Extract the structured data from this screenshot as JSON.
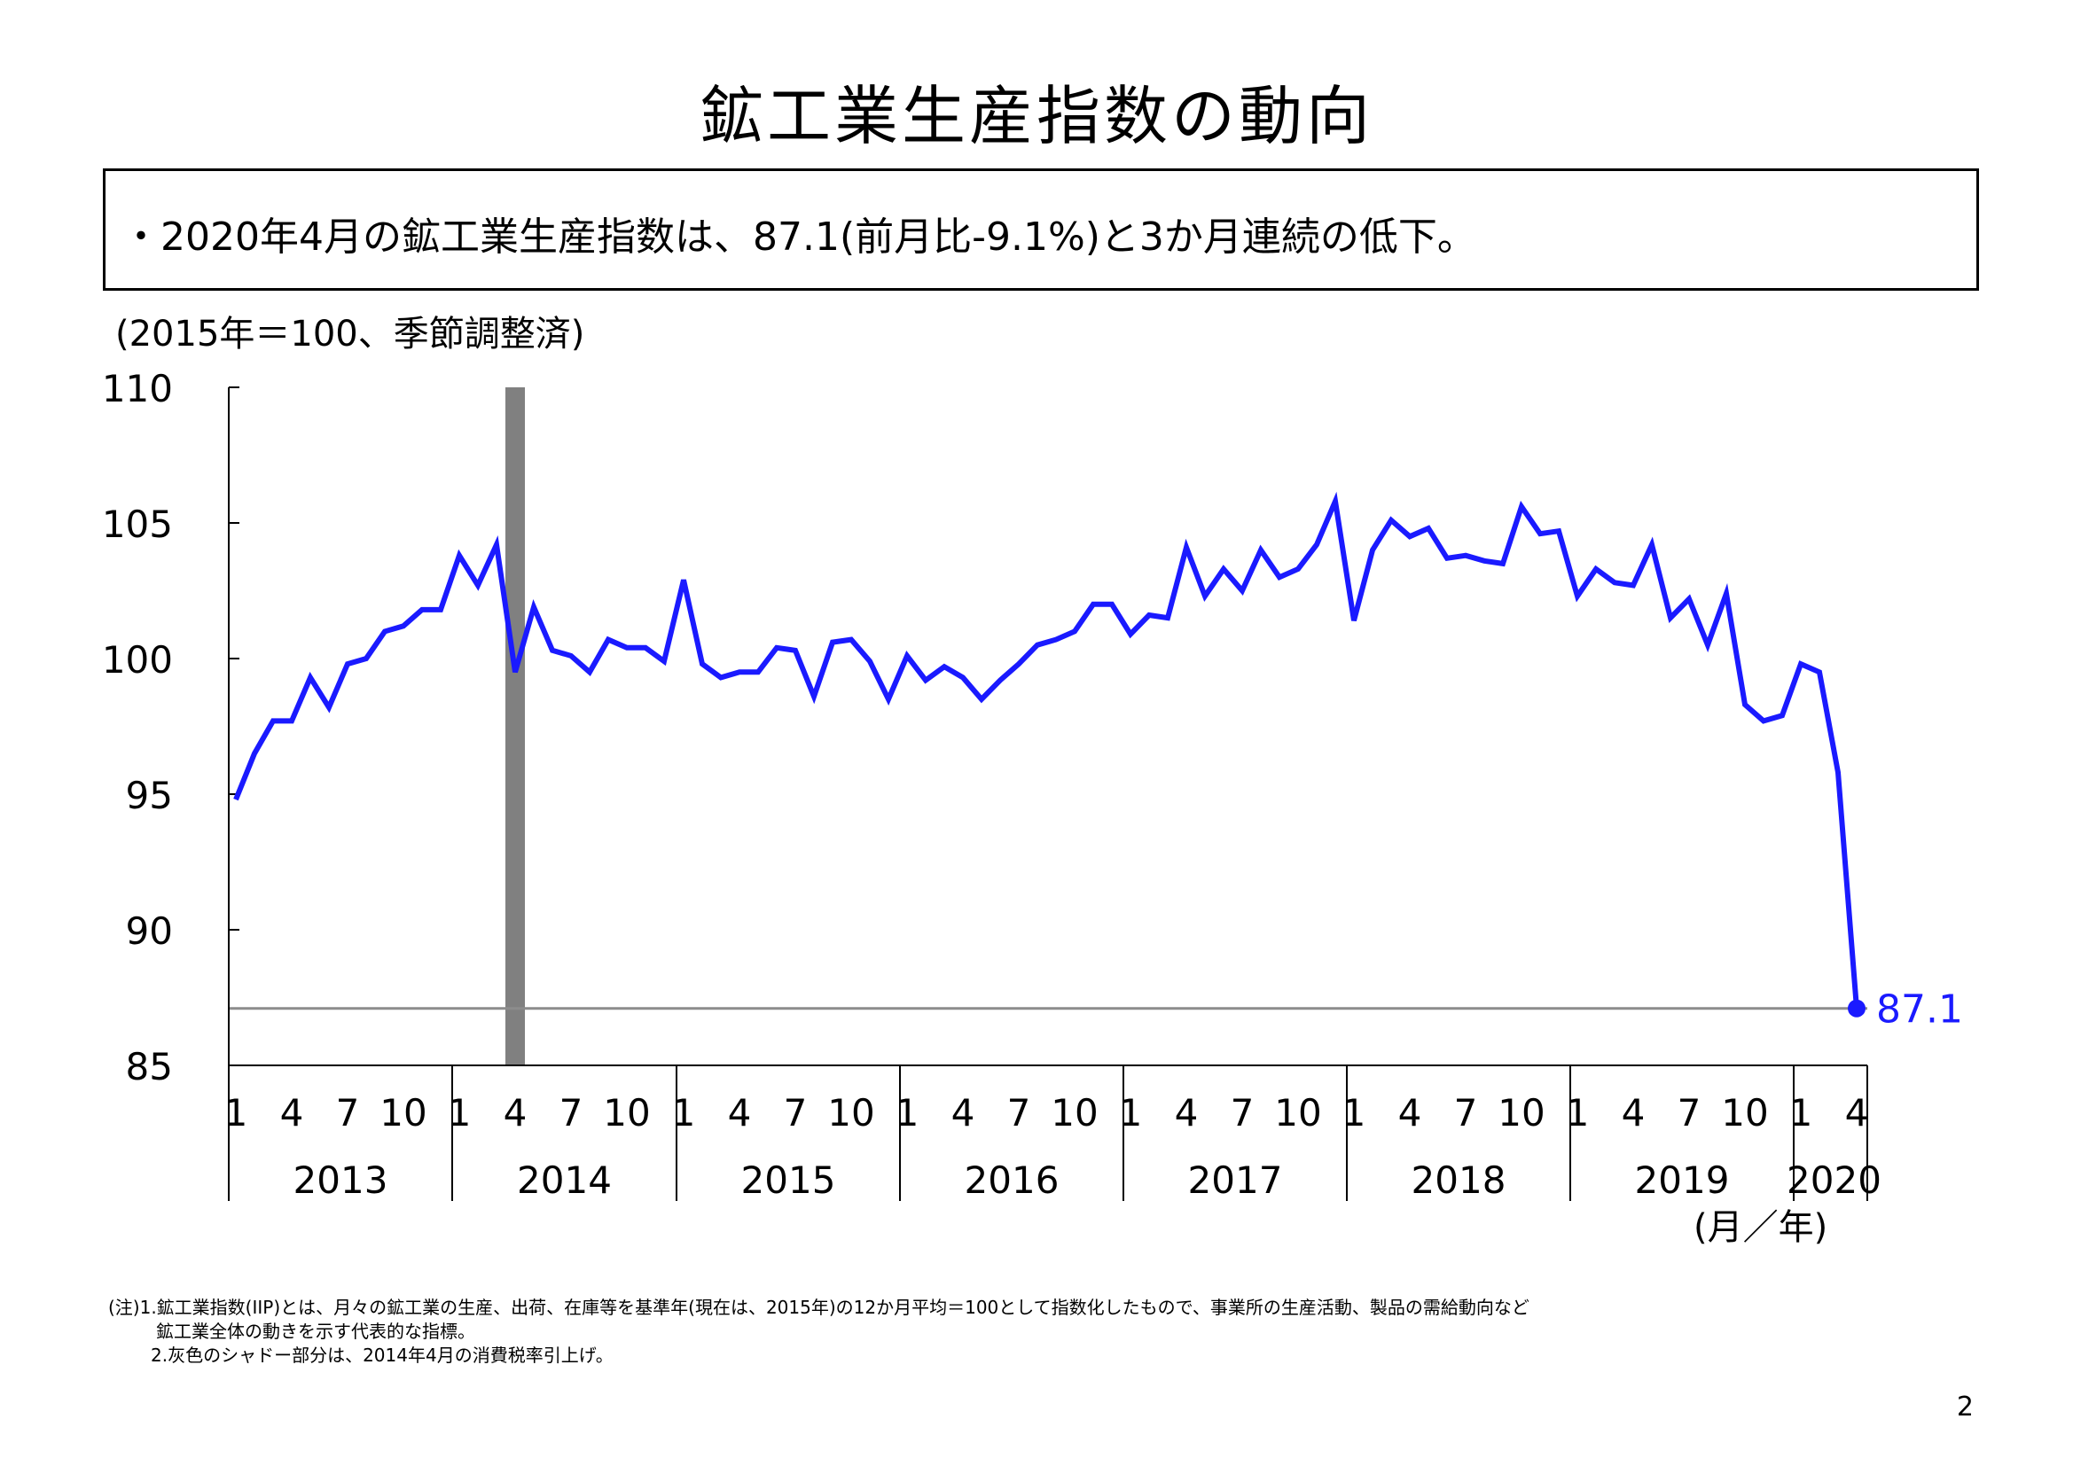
{
  "page": {
    "title": "鉱工業生産指数の動向",
    "summary": "・2020年4月の鉱工業生産指数は、87.1(前月比-9.1%)と3か月連続の低下。",
    "notes": [
      "(注)1.鉱工業指数(IIP)とは、月々の鉱工業の生産、出荷、在庫等を基準年(現在は、2015年)の12か月平均＝100として指数化したもので、事業所の生産活動、製品の需給動向など",
      "鉱工業全体の動きを示す代表的な指標。",
      "2.灰色のシャドー部分は、2014年4月の消費税率引上げ。"
    ],
    "page_number": "2"
  },
  "chart_data": {
    "type": "line",
    "ylabel": "(2015年＝100、季節調整済)",
    "xlabel": "(月／年)",
    "ylim": [
      85,
      110
    ],
    "yticks": [
      "85",
      "90",
      "95",
      "100",
      "105",
      "110"
    ],
    "years": [
      "2013",
      "2014",
      "2015",
      "2016",
      "2017",
      "2018",
      "2019",
      "2020"
    ],
    "month_ticks": [
      "1",
      "4",
      "7",
      "10"
    ],
    "last_value_label": "87.1",
    "series_color": "#1a1aff",
    "shade_color": "#808080",
    "shade": {
      "start": "2014-04",
      "end": "2014-04"
    },
    "reference_line": {
      "value": 87.1,
      "color": "#8c8c8c"
    },
    "series": [
      {
        "start": "2013-01",
        "values": [
          94.8,
          96.5,
          97.7,
          97.7,
          99.3,
          98.2,
          99.8,
          100.0,
          101.0,
          101.2,
          101.8,
          101.8,
          103.8,
          102.7,
          104.2,
          99.5,
          101.9,
          100.3,
          100.1,
          99.5,
          100.7,
          100.4,
          100.4,
          99.9,
          102.9,
          99.8,
          99.3,
          99.5,
          99.5,
          100.4,
          100.3,
          98.6,
          100.6,
          100.7,
          99.9,
          98.5,
          100.1,
          99.2,
          99.7,
          99.3,
          98.5,
          99.2,
          99.8,
          100.5,
          100.7,
          101.0,
          102.0,
          102.0,
          100.9,
          101.6,
          101.5,
          104.1,
          102.3,
          103.3,
          102.5,
          104.0,
          103.0,
          103.3,
          104.2,
          105.8,
          101.4,
          104.0,
          105.1,
          104.5,
          104.8,
          103.7,
          103.8,
          103.6,
          103.5,
          105.6,
          104.6,
          104.7,
          102.3,
          103.3,
          102.8,
          102.7,
          104.2,
          101.5,
          102.2,
          100.5,
          102.4,
          98.3,
          97.7,
          97.9,
          99.8,
          99.5,
          95.8,
          87.1
        ]
      }
    ]
  }
}
